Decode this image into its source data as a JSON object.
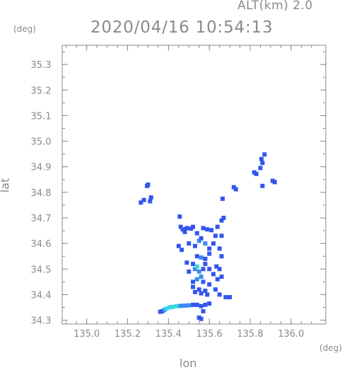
{
  "header": {
    "altitude": "ALT(km) 2.0",
    "timestamp": "2020/04/16 10:54:13"
  },
  "axes": {
    "y_unit": "(deg)",
    "x_unit": "(deg)",
    "xlabel": "lon",
    "ylabel": "lat"
  },
  "chart_data": {
    "type": "scatter",
    "title": "2020/04/16 10:54:13",
    "subtitle": "ALT(km) 2.0",
    "xlabel": "lon",
    "ylabel": "lat",
    "xlim": [
      134.88,
      136.17
    ],
    "ylim": [
      34.285,
      35.375
    ],
    "x_ticks": [
      "135.0",
      "135.2",
      "135.4",
      "135.6",
      "135.8",
      "136.0"
    ],
    "y_ticks": [
      "34.3",
      "34.4",
      "34.5",
      "34.6",
      "34.7",
      "34.8",
      "34.9",
      "35.0",
      "35.1",
      "35.2",
      "35.3"
    ],
    "grid": false,
    "colors": {
      "axis": "#8a8a8a",
      "echo_low": "#3355ee",
      "echo_mid": "#3a8cf0",
      "echo_high": "#37d8e0"
    },
    "points": [
      [
        135.295,
        34.825,
        1
      ],
      [
        135.3,
        34.83,
        1
      ],
      [
        135.265,
        34.76,
        1
      ],
      [
        135.28,
        34.77,
        1
      ],
      [
        135.315,
        34.78,
        1
      ],
      [
        135.31,
        34.765,
        1
      ],
      [
        135.82,
        34.878,
        1
      ],
      [
        135.83,
        34.872,
        1
      ],
      [
        135.85,
        34.895,
        1
      ],
      [
        135.86,
        34.915,
        1
      ],
      [
        135.855,
        34.93,
        1
      ],
      [
        135.87,
        34.948,
        1
      ],
      [
        135.91,
        34.845,
        1
      ],
      [
        135.92,
        34.84,
        1
      ],
      [
        135.86,
        34.825,
        1
      ],
      [
        135.72,
        34.82,
        1
      ],
      [
        135.73,
        34.812,
        1
      ],
      [
        135.665,
        34.775,
        1
      ],
      [
        135.455,
        34.705,
        1
      ],
      [
        135.46,
        34.665,
        1
      ],
      [
        135.47,
        34.655,
        1
      ],
      [
        135.48,
        34.645,
        1
      ],
      [
        135.49,
        34.66,
        1
      ],
      [
        135.51,
        34.658,
        1
      ],
      [
        135.52,
        34.665,
        1
      ],
      [
        135.54,
        34.64,
        1
      ],
      [
        135.57,
        34.66,
        1
      ],
      [
        135.59,
        34.655,
        1
      ],
      [
        135.61,
        34.652,
        1
      ],
      [
        135.64,
        34.665,
        1
      ],
      [
        135.66,
        34.69,
        1
      ],
      [
        135.67,
        34.7,
        1
      ],
      [
        135.66,
        34.63,
        1
      ],
      [
        135.63,
        34.63,
        1
      ],
      [
        135.45,
        34.59,
        1
      ],
      [
        135.465,
        34.575,
        1
      ],
      [
        135.5,
        34.6,
        1
      ],
      [
        135.53,
        34.59,
        1
      ],
      [
        135.55,
        34.61,
        2
      ],
      [
        135.56,
        34.62,
        1
      ],
      [
        135.58,
        34.6,
        2
      ],
      [
        135.6,
        34.58,
        1
      ],
      [
        135.62,
        34.6,
        1
      ],
      [
        135.65,
        34.58,
        1
      ],
      [
        135.66,
        34.55,
        1
      ],
      [
        135.6,
        34.56,
        1
      ],
      [
        135.58,
        34.54,
        1
      ],
      [
        135.56,
        34.545,
        2
      ],
      [
        135.54,
        34.55,
        1
      ],
      [
        135.52,
        34.52,
        1
      ],
      [
        135.53,
        34.5,
        2
      ],
      [
        135.54,
        34.51,
        3
      ],
      [
        135.55,
        34.49,
        2
      ],
      [
        135.56,
        34.47,
        2
      ],
      [
        135.57,
        34.5,
        1
      ],
      [
        135.58,
        34.52,
        1
      ],
      [
        135.6,
        34.5,
        1
      ],
      [
        135.62,
        34.48,
        1
      ],
      [
        135.635,
        34.51,
        1
      ],
      [
        135.65,
        34.5,
        1
      ],
      [
        135.64,
        34.46,
        1
      ],
      [
        135.66,
        34.47,
        1
      ],
      [
        135.6,
        34.44,
        1
      ],
      [
        135.57,
        34.45,
        1
      ],
      [
        135.54,
        34.46,
        2
      ],
      [
        135.52,
        34.45,
        1
      ],
      [
        135.5,
        34.49,
        1
      ],
      [
        135.49,
        34.525,
        1
      ],
      [
        135.55,
        34.42,
        1
      ],
      [
        135.56,
        34.405,
        1
      ],
      [
        135.58,
        34.415,
        1
      ],
      [
        135.53,
        34.41,
        1
      ],
      [
        135.52,
        34.43,
        1
      ],
      [
        135.59,
        34.4,
        1
      ],
      [
        135.63,
        34.42,
        1
      ],
      [
        135.65,
        34.4,
        1
      ],
      [
        135.68,
        34.39,
        1
      ],
      [
        135.7,
        34.39,
        1
      ],
      [
        135.37,
        34.335,
        1
      ],
      [
        135.38,
        34.34,
        2
      ],
      [
        135.39,
        34.345,
        3
      ],
      [
        135.405,
        34.35,
        3
      ],
      [
        135.42,
        34.352,
        3
      ],
      [
        135.44,
        34.355,
        3
      ],
      [
        135.46,
        34.356,
        2
      ],
      [
        135.48,
        34.357,
        2
      ],
      [
        135.5,
        34.358,
        2
      ],
      [
        135.52,
        34.36,
        1
      ],
      [
        135.54,
        34.36,
        1
      ],
      [
        135.56,
        34.355,
        1
      ],
      [
        135.58,
        34.36,
        1
      ],
      [
        135.6,
        34.365,
        1
      ],
      [
        135.57,
        34.335,
        1
      ],
      [
        135.55,
        34.31,
        1
      ],
      [
        135.56,
        34.305,
        1
      ],
      [
        135.36,
        34.333,
        1
      ]
    ]
  }
}
